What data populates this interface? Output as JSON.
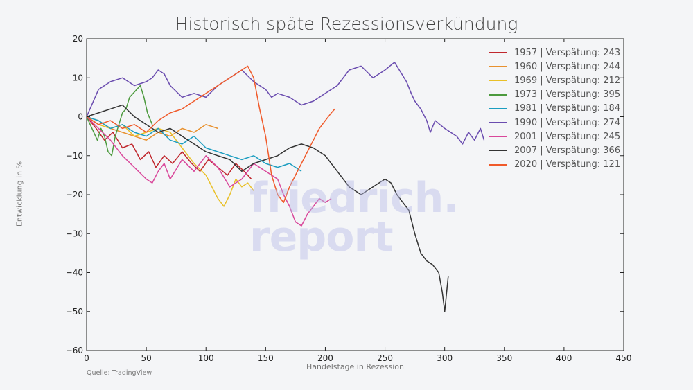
{
  "chart_data": {
    "type": "line",
    "title": "Historisch späte Rezessionsverkündung",
    "xlabel": "Handelstage in Rezession",
    "ylabel": "Entwicklung in %",
    "source": "Quelle: TradingView",
    "watermark": [
      "friedrich.",
      "report"
    ],
    "xlim": [
      0,
      450
    ],
    "ylim": [
      -60,
      20
    ],
    "xticks": [
      0,
      50,
      100,
      150,
      200,
      250,
      300,
      350,
      400,
      450
    ],
    "yticks": [
      20,
      10,
      0,
      -10,
      -20,
      -30,
      -40,
      -50,
      -60
    ],
    "ytick_labels": [
      "20",
      "10",
      "0",
      "−10",
      "−20",
      "−30",
      "−40",
      "−50",
      "−60"
    ],
    "grid": false,
    "legend_position": "top-right",
    "series": [
      {
        "name": "1957 | Verspätung: 243",
        "color": "#c0272d",
        "x": [
          0,
          8,
          15,
          22,
          30,
          38,
          45,
          52,
          58,
          65,
          72,
          80,
          88,
          95,
          102,
          110,
          118,
          125,
          132,
          138
        ],
        "y": [
          0,
          -3,
          -6,
          -4,
          -8,
          -7,
          -11,
          -9,
          -13,
          -10,
          -12,
          -9,
          -12,
          -14,
          -11,
          -13,
          -15,
          -12,
          -14,
          -16
        ]
      },
      {
        "name": "1960 | Verspätung: 244",
        "color": "#e8912f",
        "x": [
          0,
          10,
          20,
          30,
          40,
          50,
          60,
          70,
          80,
          90,
          100,
          110
        ],
        "y": [
          0,
          -1,
          -3,
          -4,
          -5,
          -6,
          -4,
          -5,
          -3,
          -4,
          -2,
          -3
        ]
      },
      {
        "name": "1969 | Verspätung: 212",
        "color": "#e9c028",
        "x": [
          0,
          10,
          20,
          30,
          40,
          50,
          60,
          70,
          80,
          90,
          100,
          105,
          110,
          115,
          120,
          125,
          130,
          135,
          140
        ],
        "y": [
          0,
          -2,
          -3,
          -2,
          -5,
          -4,
          -3,
          -4,
          -8,
          -12,
          -15,
          -18,
          -21,
          -23,
          -20,
          -16,
          -18,
          -17,
          -19
        ]
      },
      {
        "name": "1973 | Verspätung: 395",
        "color": "#4c9a3e",
        "x": [
          0,
          3,
          6,
          9,
          12,
          15,
          18,
          21,
          24,
          27,
          30,
          33,
          36,
          39,
          42,
          45,
          48,
          51,
          55
        ],
        "y": [
          0,
          -2,
          -4,
          -6,
          -3,
          -5,
          -9,
          -10,
          -5,
          -2,
          1,
          2,
          5,
          6,
          7,
          8,
          5,
          1,
          -2
        ]
      },
      {
        "name": "1981 | Verspätung: 184",
        "color": "#1b9dc0",
        "x": [
          0,
          10,
          20,
          30,
          40,
          50,
          60,
          70,
          80,
          90,
          100,
          110,
          120,
          130,
          140,
          150,
          160,
          170,
          180
        ],
        "y": [
          0,
          -1,
          -3,
          -2,
          -4,
          -5,
          -3,
          -6,
          -7,
          -5,
          -8,
          -9,
          -10,
          -11,
          -10,
          -12,
          -13,
          -12,
          -14
        ]
      },
      {
        "name": "1990 | Verspätung: 274",
        "color": "#6a4caf",
        "x": [
          0,
          10,
          20,
          30,
          40,
          50,
          55,
          60,
          65,
          70,
          80,
          90,
          100,
          110,
          120,
          130,
          140,
          150,
          155,
          160,
          170,
          180,
          190,
          200,
          210,
          220,
          230,
          240,
          250,
          258,
          262,
          268,
          272,
          275,
          280,
          285,
          288,
          292,
          296,
          300,
          305,
          310,
          315,
          320,
          325,
          330,
          333
        ],
        "y": [
          0,
          7,
          9,
          10,
          8,
          9,
          10,
          12,
          11,
          8,
          5,
          6,
          5,
          8,
          10,
          12,
          9,
          7,
          5,
          6,
          5,
          3,
          4,
          6,
          8,
          12,
          13,
          10,
          12,
          14,
          12,
          9,
          6,
          4,
          2,
          -1,
          -4,
          -1,
          -2,
          -3,
          -4,
          -5,
          -7,
          -4,
          -6,
          -3,
          -6
        ]
      },
      {
        "name": "2001 | Verspätung: 245",
        "color": "#d9479a",
        "x": [
          0,
          10,
          20,
          30,
          40,
          50,
          55,
          60,
          65,
          70,
          80,
          90,
          100,
          110,
          120,
          130,
          140,
          150,
          160,
          165,
          170,
          175,
          180,
          185,
          190,
          195,
          200,
          205
        ],
        "y": [
          0,
          -3,
          -6,
          -10,
          -13,
          -16,
          -17,
          -14,
          -12,
          -16,
          -11,
          -14,
          -10,
          -13,
          -18,
          -16,
          -12,
          -14,
          -16,
          -20,
          -23,
          -27,
          -28,
          -25,
          -23,
          -21,
          -22,
          -21
        ]
      },
      {
        "name": "2007 | Verspätung: 366",
        "color": "#333333",
        "x": [
          0,
          10,
          20,
          30,
          40,
          50,
          60,
          70,
          80,
          90,
          100,
          110,
          120,
          130,
          140,
          150,
          160,
          170,
          180,
          190,
          200,
          210,
          220,
          230,
          240,
          250,
          255,
          260,
          265,
          270,
          275,
          280,
          285,
          290,
          295,
          298,
          300,
          303
        ],
        "y": [
          0,
          1,
          2,
          3,
          0,
          -2,
          -4,
          -3,
          -5,
          -7,
          -9,
          -10,
          -11,
          -14,
          -12,
          -11,
          -10,
          -8,
          -7,
          -8,
          -10,
          -14,
          -18,
          -20,
          -18,
          -16,
          -17,
          -20,
          -22,
          -24,
          -30,
          -35,
          -37,
          -38,
          -40,
          -45,
          -50,
          -41
        ]
      },
      {
        "name": "2020 | Verspätung: 121",
        "color": "#f05a2a",
        "x": [
          0,
          10,
          20,
          30,
          40,
          50,
          60,
          70,
          80,
          90,
          100,
          110,
          120,
          130,
          135,
          140,
          145,
          150,
          155,
          160,
          165,
          170,
          175,
          180,
          185,
          190,
          195,
          200,
          205,
          208
        ],
        "y": [
          0,
          -2,
          -1,
          -3,
          -2,
          -4,
          -1,
          1,
          2,
          4,
          6,
          8,
          10,
          12,
          13,
          10,
          2,
          -5,
          -15,
          -20,
          -22,
          -18,
          -15,
          -12,
          -9,
          -6,
          -3,
          -1,
          1,
          2
        ]
      }
    ]
  }
}
